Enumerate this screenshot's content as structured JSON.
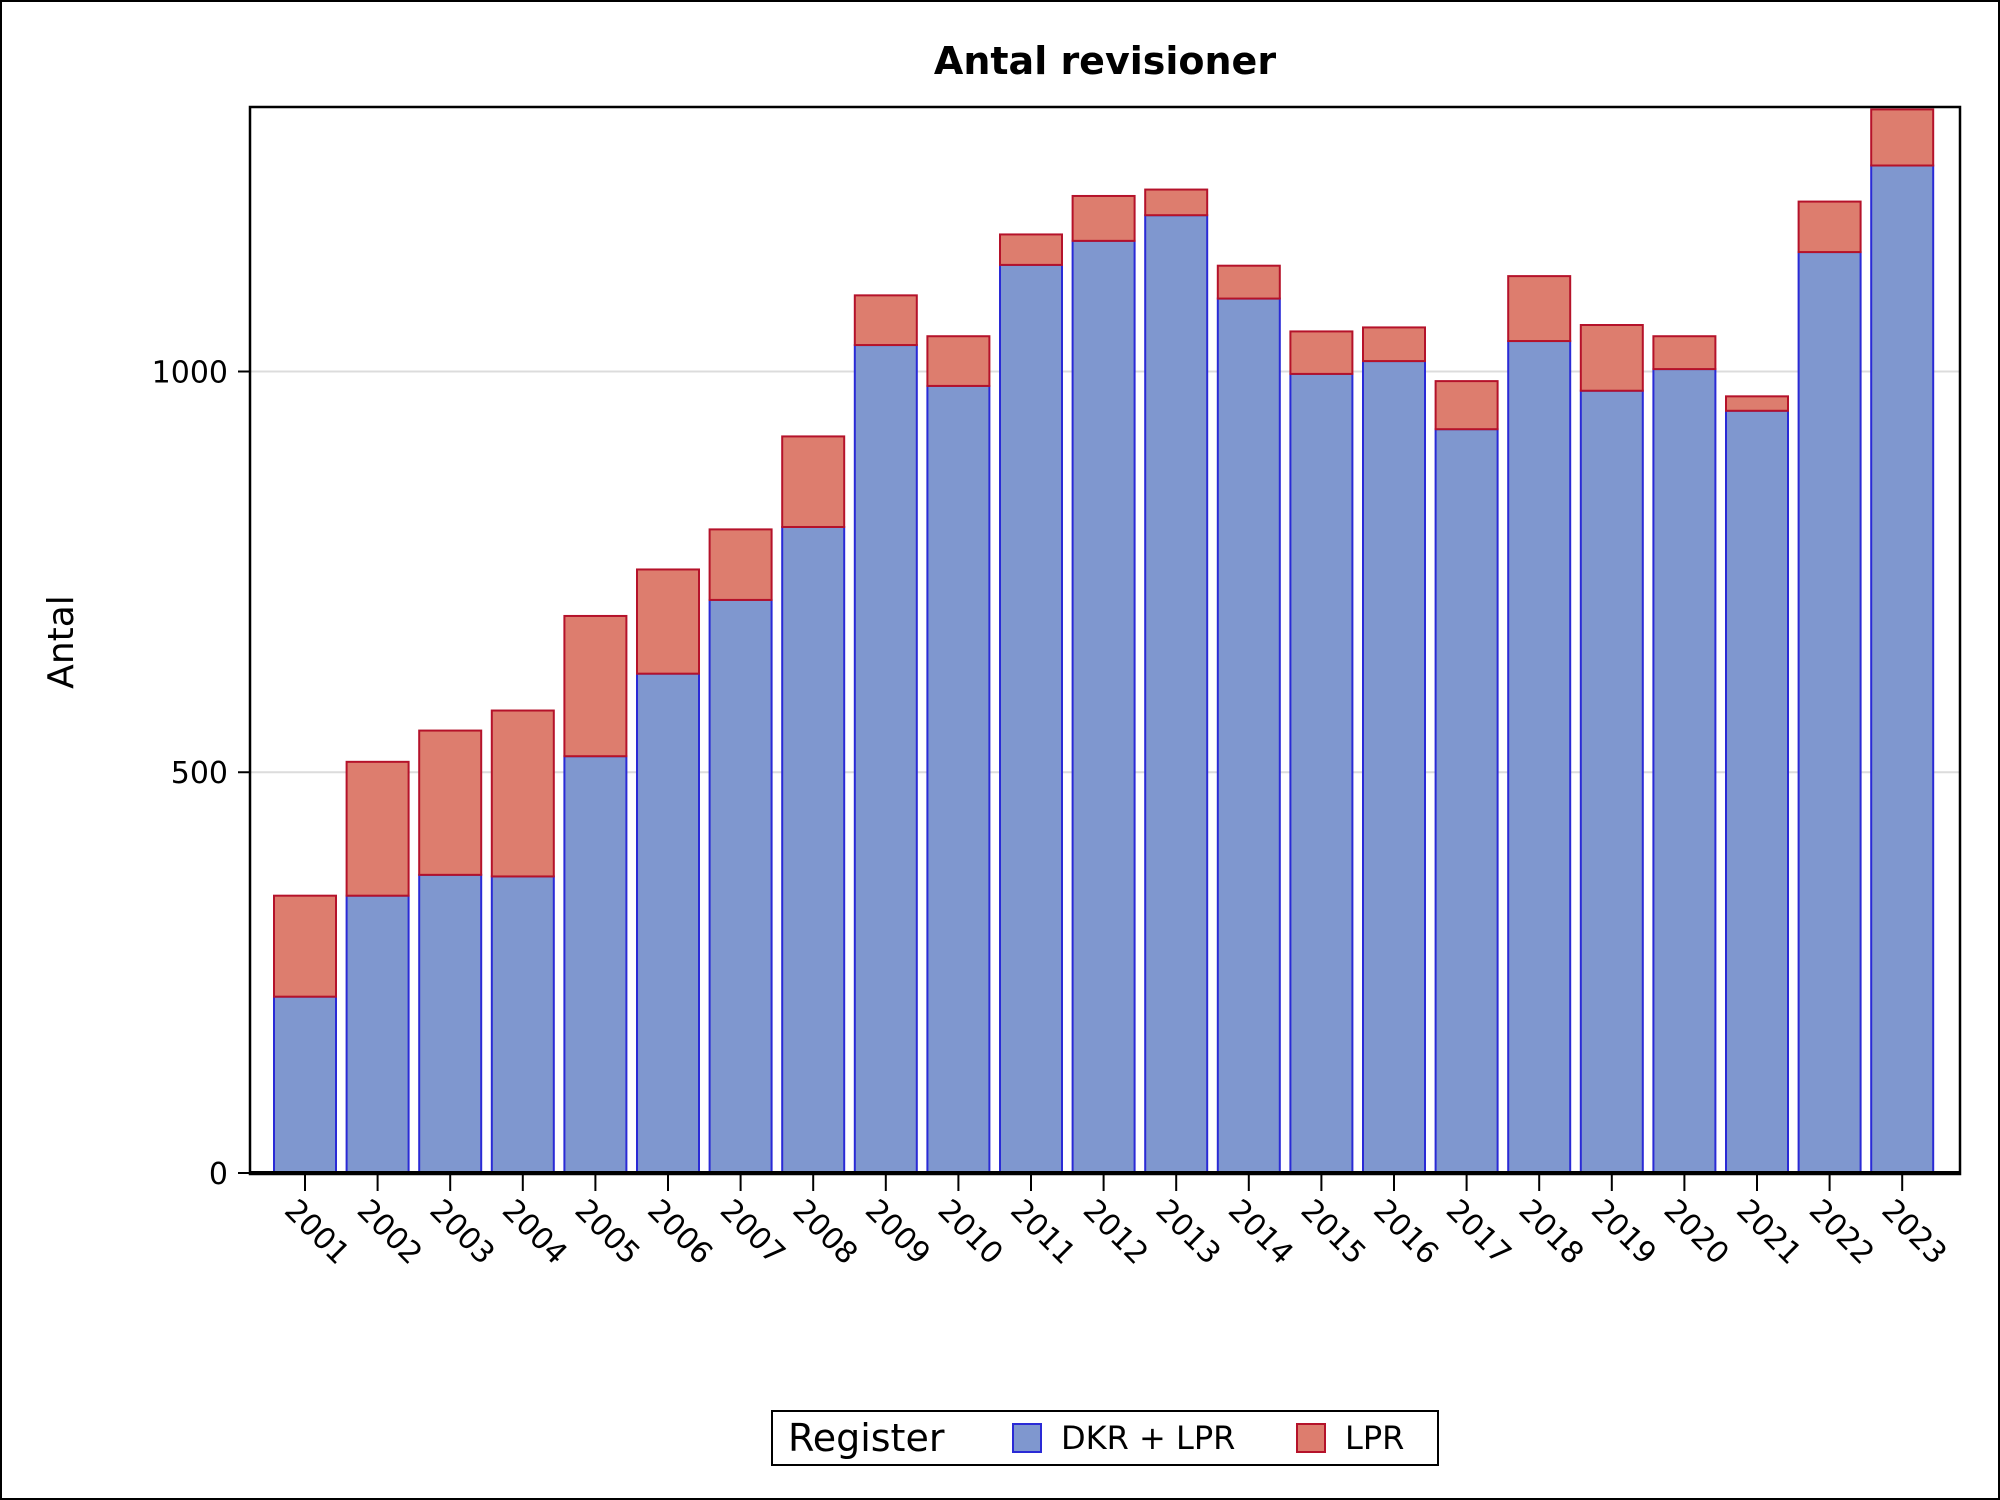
{
  "chart_data": {
    "type": "bar",
    "stacked": true,
    "title": "Antal revisioner",
    "xlabel": "",
    "ylabel": "Antal",
    "ylim": [
      0,
      1330
    ],
    "yticks": [
      0,
      500,
      1000
    ],
    "grid": true,
    "categories": [
      "2001",
      "2002",
      "2003",
      "2004",
      "2005",
      "2006",
      "2007",
      "2008",
      "2009",
      "2010",
      "2011",
      "2012",
      "2013",
      "2014",
      "2015",
      "2016",
      "2017",
      "2018",
      "2019",
      "2020",
      "2021",
      "2022",
      "2023"
    ],
    "series": [
      {
        "name": "DKR + LPR",
        "color": "#7f97cf",
        "stroke": "#2a2ad6",
        "values": [
          220,
          346,
          372,
          370,
          520,
          623,
          715,
          806,
          1033,
          982,
          1133,
          1163,
          1195,
          1091,
          997,
          1013,
          928,
          1038,
          976,
          1003,
          951,
          1149,
          1257
        ]
      },
      {
        "name": "LPR",
        "color": "#dd7d6e",
        "stroke": "#b5122a",
        "values": [
          126,
          167,
          180,
          207,
          175,
          130,
          88,
          113,
          62,
          62,
          38,
          56,
          32,
          41,
          53,
          42,
          60,
          81,
          82,
          41,
          18,
          63,
          70
        ]
      }
    ],
    "legend": {
      "title": "Register",
      "position": "bottom-center"
    }
  }
}
